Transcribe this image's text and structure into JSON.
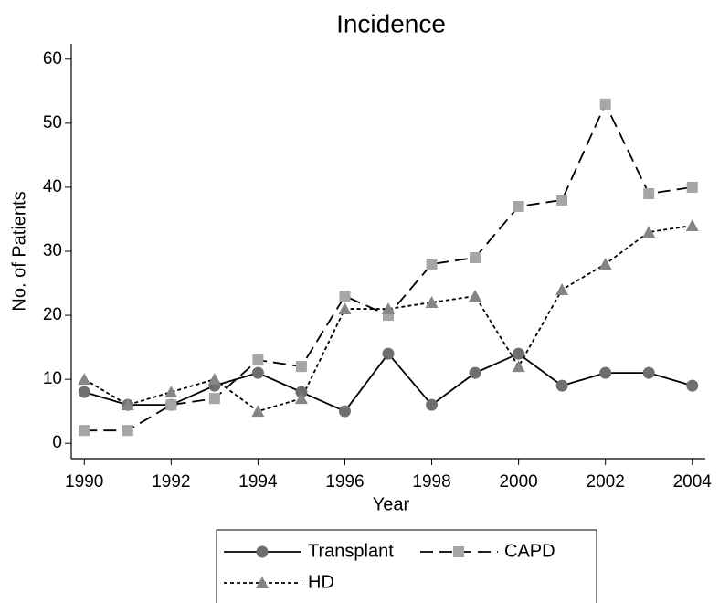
{
  "chart_data": {
    "type": "line",
    "title": "Incidence",
    "x_label": "Year",
    "y_label": "No. of Patients",
    "x": [
      1990,
      1991,
      1992,
      1993,
      1994,
      1995,
      1996,
      1997,
      1998,
      1999,
      2000,
      2001,
      2002,
      2003,
      2004
    ],
    "series": [
      {
        "name": "Transplant",
        "color": "#000000",
        "marker_color": "#6e6e6e",
        "marker": "circle",
        "dash": "solid",
        "values": [
          8,
          6,
          6,
          9,
          11,
          8,
          5,
          14,
          6,
          11,
          14,
          9,
          11,
          11,
          9
        ]
      },
      {
        "name": "CAPD",
        "color": "#000000",
        "marker_color": "#a6a6a6",
        "marker": "square",
        "dash": "dashed",
        "values": [
          2,
          2,
          6,
          7,
          13,
          12,
          23,
          20,
          28,
          29,
          37,
          38,
          53,
          39,
          40
        ]
      },
      {
        "name": "HD",
        "color": "#000000",
        "marker_color": "#858585",
        "marker": "triangle",
        "dash": "dotted",
        "values": [
          10,
          6,
          8,
          10,
          5,
          7,
          21,
          21,
          22,
          23,
          12,
          24,
          28,
          33,
          34
        ]
      }
    ],
    "xlim": [
      1989.7,
      2004.3
    ],
    "xticks": [
      1990,
      1992,
      1994,
      1996,
      1998,
      2000,
      2002,
      2004
    ],
    "ylim": [
      -2.4,
      62.4
    ],
    "yticks": [
      0,
      10,
      20,
      30,
      40,
      50,
      60
    ],
    "grid": false,
    "legend_position": "bottom"
  }
}
